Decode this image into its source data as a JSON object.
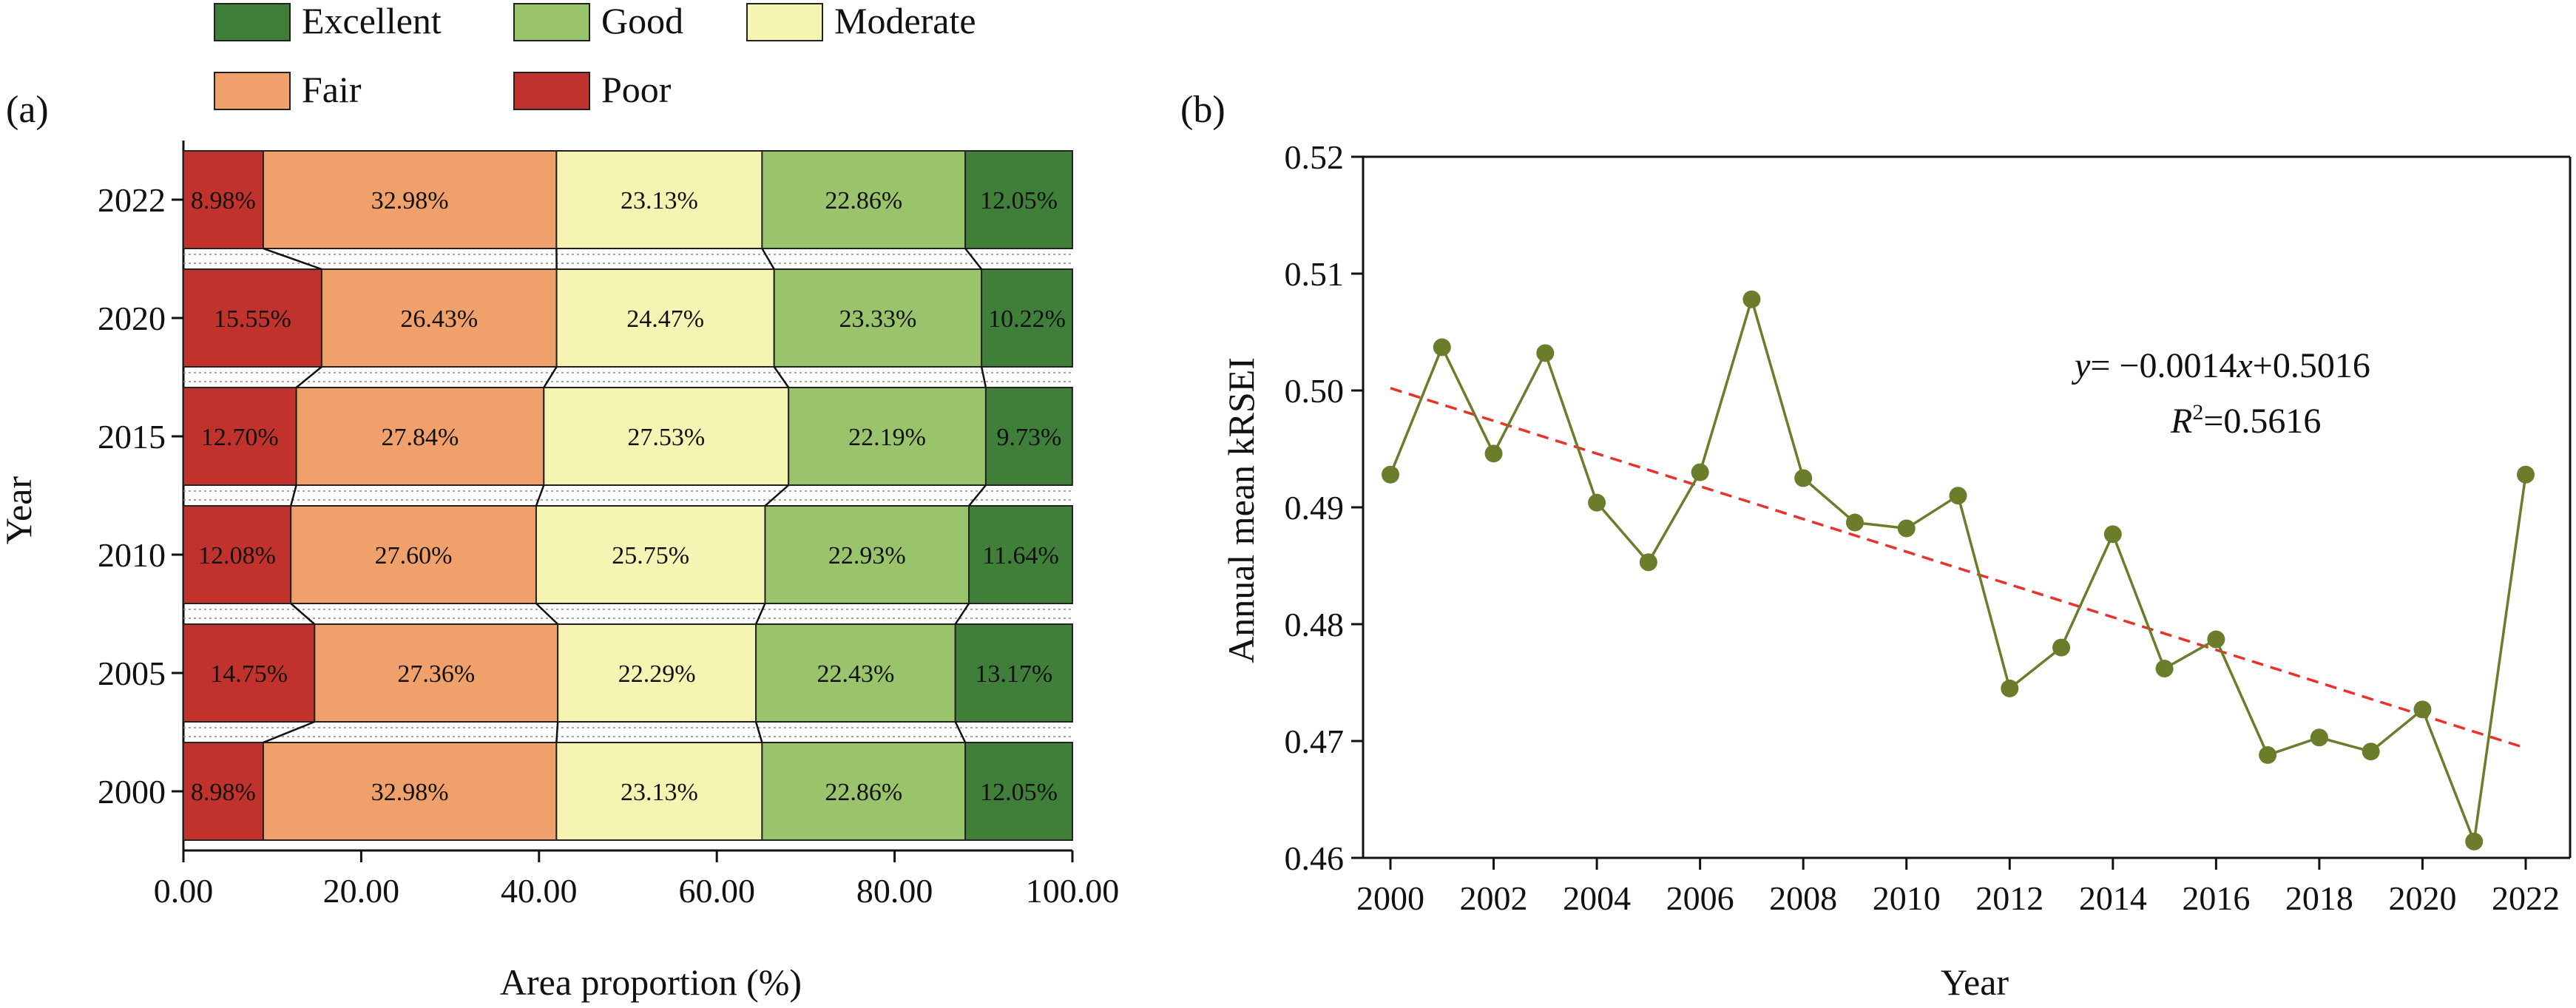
{
  "colors": {
    "Excellent": "#3f7f3a",
    "Good": "#9ac46c",
    "Moderate": "#f6f4b2",
    "Fair": "#f0a06a",
    "Poor": "#c1322c",
    "line": "#6b7d2a",
    "trend": "#e8322b"
  },
  "chart_data": [
    {
      "panel": "(a)",
      "type": "bar",
      "stacked": true,
      "orientation": "horizontal",
      "xlabel": "Area proportion (%)",
      "ylabel": "Year",
      "xlim": [
        0,
        100
      ],
      "x_ticks": [
        "0.00",
        "20.00",
        "40.00",
        "60.00",
        "80.00",
        "100.00"
      ],
      "categories": [
        "2022",
        "2020",
        "2015",
        "2010",
        "2005",
        "2000"
      ],
      "legend": [
        "Excellent",
        "Good",
        "Moderate",
        "Fair",
        "Poor"
      ],
      "legend_position": "top",
      "series": [
        {
          "name": "Poor",
          "values": [
            8.98,
            15.55,
            12.7,
            12.08,
            14.75,
            8.98
          ],
          "labels": [
            "8.98%",
            "15.55%",
            "12.70%",
            "12.08%",
            "14.75%",
            "8.98%"
          ]
        },
        {
          "name": "Fair",
          "values": [
            32.98,
            26.43,
            27.84,
            27.6,
            27.36,
            32.98
          ],
          "labels": [
            "32.98%",
            "26.43%",
            "27.84%",
            "27.60%",
            "27.36%",
            "32.98%"
          ]
        },
        {
          "name": "Moderate",
          "values": [
            23.13,
            24.47,
            27.53,
            25.75,
            22.29,
            23.13
          ],
          "labels": [
            "23.13%",
            "24.47%",
            "27.53%",
            "25.75%",
            "22.29%",
            "23.13%"
          ]
        },
        {
          "name": "Good",
          "values": [
            22.86,
            23.33,
            22.19,
            22.93,
            22.43,
            22.86
          ],
          "labels": [
            "22.86%",
            "23.33%",
            "22.19%",
            "22.93%",
            "22.43%",
            "22.86%"
          ]
        },
        {
          "name": "Excellent",
          "values": [
            12.05,
            10.22,
            9.73,
            11.64,
            13.17,
            12.05
          ],
          "labels": [
            "12.05%",
            "10.22%",
            "9.73%",
            "11.64%",
            "13.17%",
            "12.05%"
          ]
        }
      ]
    },
    {
      "panel": "(b)",
      "type": "line",
      "xlabel": "Year",
      "ylabel": "Annual mean kRSEI",
      "xlim": [
        2000,
        2022
      ],
      "ylim": [
        0.46,
        0.52
      ],
      "x_ticks": [
        "2000",
        "2002",
        "2004",
        "2006",
        "2008",
        "2010",
        "2012",
        "2014",
        "2016",
        "2018",
        "2020",
        "2022"
      ],
      "y_ticks": [
        "0.46",
        "0.47",
        "0.48",
        "0.49",
        "0.50",
        "0.51",
        "0.52"
      ],
      "x": [
        2000,
        2001,
        2002,
        2003,
        2004,
        2005,
        2006,
        2007,
        2008,
        2009,
        2010,
        2011,
        2012,
        2013,
        2014,
        2015,
        2016,
        2017,
        2018,
        2019,
        2020,
        2021,
        2022
      ],
      "y": [
        0.4928,
        0.5037,
        0.4946,
        0.5032,
        0.4904,
        0.4853,
        0.493,
        0.5078,
        0.4925,
        0.4887,
        0.4882,
        0.491,
        0.4745,
        0.478,
        0.4877,
        0.4762,
        0.4787,
        0.4688,
        0.4703,
        0.4691,
        0.4727,
        0.4614,
        0.4928
      ],
      "trend": {
        "slope": -0.0014,
        "intercept": 0.5016,
        "x_range": [
          2000,
          2022
        ]
      },
      "equation_prefix": "y",
      "equation_rest": "= −0.0014",
      "equation_var": "x",
      "equation_tail": "+0.5016",
      "r2_prefix": "R",
      "r2_sup": "2",
      "r2_value": "=0.5616"
    }
  ]
}
